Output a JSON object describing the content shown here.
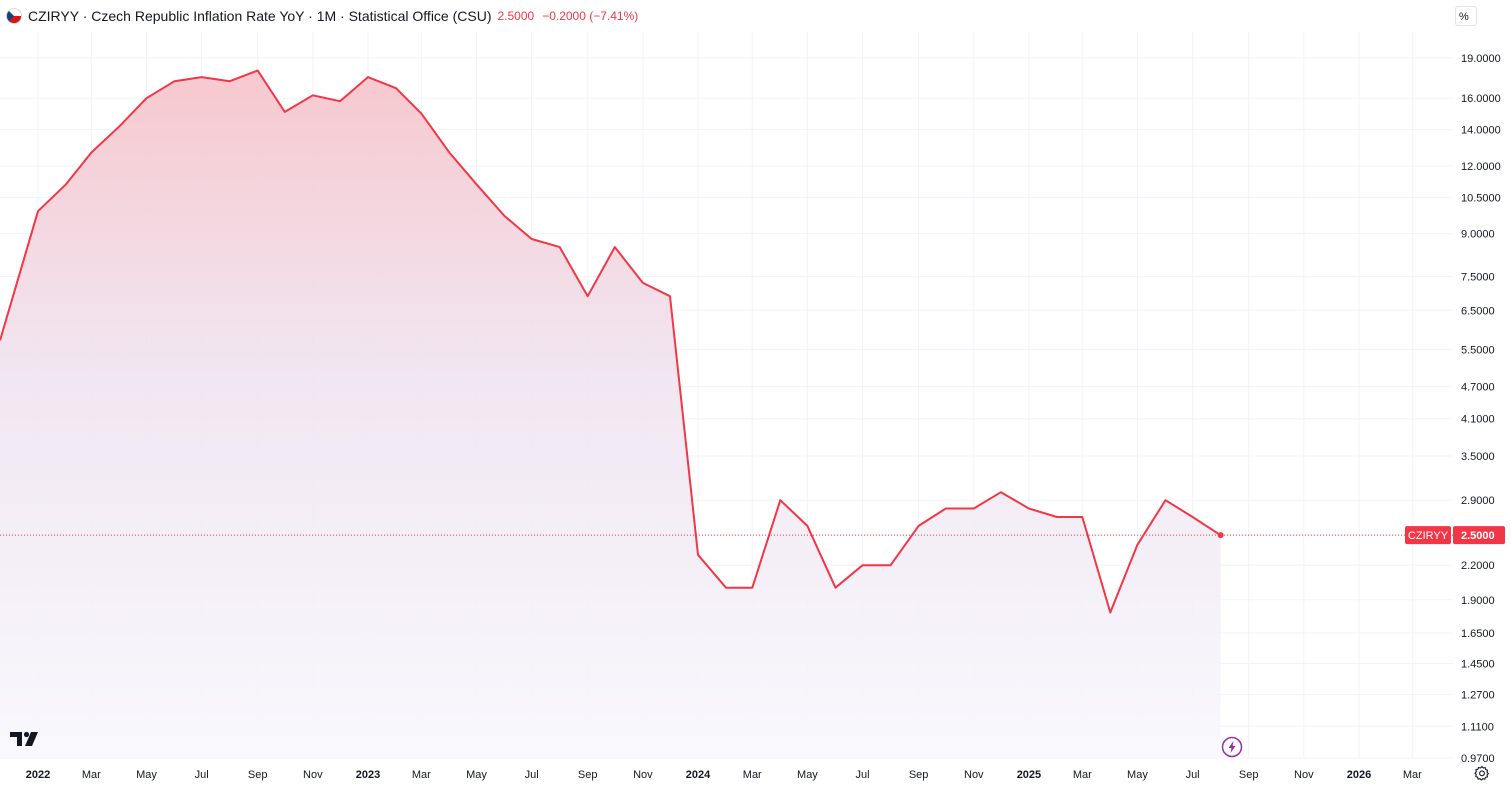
{
  "header": {
    "title": "CZIRYY · Czech Republic Inflation Rate YoY · 1M · Statistical Office (CSU)",
    "last": "2.5000",
    "change": "−0.2000 (−7.41%)"
  },
  "scale_button": "%",
  "colors": {
    "line": "#f23645",
    "fill_top": "#f7c5cc",
    "fill_bottom": "#f4f3fb",
    "grid": "#f0f3fa",
    "axis_text": "#131722"
  },
  "icons": {
    "flag": "czech-flag-icon",
    "logo": "tradingview-logo-icon",
    "bolt": "lightning-bolt-icon",
    "settings": "gear-icon"
  },
  "chart_data": {
    "type": "area",
    "title": "CZIRYY · Czech Republic Inflation Rate YoY · 1M · Statistical Office (CSU)",
    "yscale": "log",
    "ylabel": "%",
    "ylim": [
      0.97,
      21.2
    ],
    "xlim": [
      "2021-11-20",
      "2026-04-15"
    ],
    "series": [
      {
        "name": "CZIRYY",
        "x": [
          "2021-12",
          "2022-01",
          "2022-02",
          "2022-03",
          "2022-04",
          "2022-05",
          "2022-06",
          "2022-07",
          "2022-08",
          "2022-09",
          "2022-10",
          "2022-11",
          "2022-12",
          "2023-01",
          "2023-02",
          "2023-03",
          "2023-04",
          "2023-05",
          "2023-06",
          "2023-07",
          "2023-08",
          "2023-09",
          "2023-10",
          "2023-11",
          "2023-12",
          "2024-01",
          "2024-02",
          "2024-03",
          "2024-04",
          "2024-05",
          "2024-06",
          "2024-07",
          "2024-08",
          "2024-09",
          "2024-10",
          "2024-11",
          "2024-12",
          "2025-01",
          "2025-02",
          "2025-03",
          "2025-04",
          "2025-05",
          "2025-06",
          "2025-07",
          "2025-08"
        ],
        "values": [
          6.6,
          9.9,
          11.1,
          12.7,
          14.2,
          16.0,
          17.2,
          17.5,
          17.2,
          18.0,
          15.1,
          16.2,
          15.8,
          17.5,
          16.7,
          15.0,
          12.7,
          11.1,
          9.7,
          8.8,
          8.5,
          6.9,
          8.5,
          7.3,
          6.9,
          2.3,
          2.0,
          2.0,
          2.9,
          2.6,
          2.0,
          2.2,
          2.2,
          2.6,
          2.8,
          2.8,
          3.0,
          2.8,
          2.7,
          2.7,
          1.8,
          2.4,
          2.9,
          2.7,
          2.5
        ]
      }
    ],
    "last_value_label": {
      "series": "CZIRYY",
      "value": "2.5000"
    },
    "y_ticks": [
      "19.0000",
      "16.0000",
      "14.0000",
      "12.0000",
      "10.5000",
      "9.0000",
      "7.5000",
      "6.5000",
      "5.5000",
      "4.7000",
      "4.1000",
      "3.5000",
      "2.9000",
      "2.5000",
      "2.2000",
      "1.9000",
      "1.6500",
      "1.4500",
      "1.2700",
      "1.1100",
      "0.9700"
    ],
    "x_ticks": [
      {
        "label": "2022",
        "date": "2022-01",
        "bold": true
      },
      {
        "label": "Mar",
        "date": "2022-03"
      },
      {
        "label": "May",
        "date": "2022-05"
      },
      {
        "label": "Jul",
        "date": "2022-07"
      },
      {
        "label": "Sep",
        "date": "2022-09"
      },
      {
        "label": "Nov",
        "date": "2022-11"
      },
      {
        "label": "2023",
        "date": "2023-01",
        "bold": true
      },
      {
        "label": "Mar",
        "date": "2023-03"
      },
      {
        "label": "May",
        "date": "2023-05"
      },
      {
        "label": "Jul",
        "date": "2023-07"
      },
      {
        "label": "Sep",
        "date": "2023-09"
      },
      {
        "label": "Nov",
        "date": "2023-11"
      },
      {
        "label": "2024",
        "date": "2024-01",
        "bold": true
      },
      {
        "label": "Mar",
        "date": "2024-03"
      },
      {
        "label": "May",
        "date": "2024-05"
      },
      {
        "label": "Jul",
        "date": "2024-07"
      },
      {
        "label": "Sep",
        "date": "2024-09"
      },
      {
        "label": "Nov",
        "date": "2024-11"
      },
      {
        "label": "2025",
        "date": "2025-01",
        "bold": true
      },
      {
        "label": "Mar",
        "date": "2025-03"
      },
      {
        "label": "May",
        "date": "2025-05"
      },
      {
        "label": "Jul",
        "date": "2025-07"
      },
      {
        "label": "Sep",
        "date": "2025-09"
      },
      {
        "label": "Nov",
        "date": "2025-11"
      },
      {
        "label": "2026",
        "date": "2026-01",
        "bold": true
      },
      {
        "label": "Mar",
        "date": "2026-03"
      }
    ],
    "grid": true,
    "legend": "none"
  }
}
